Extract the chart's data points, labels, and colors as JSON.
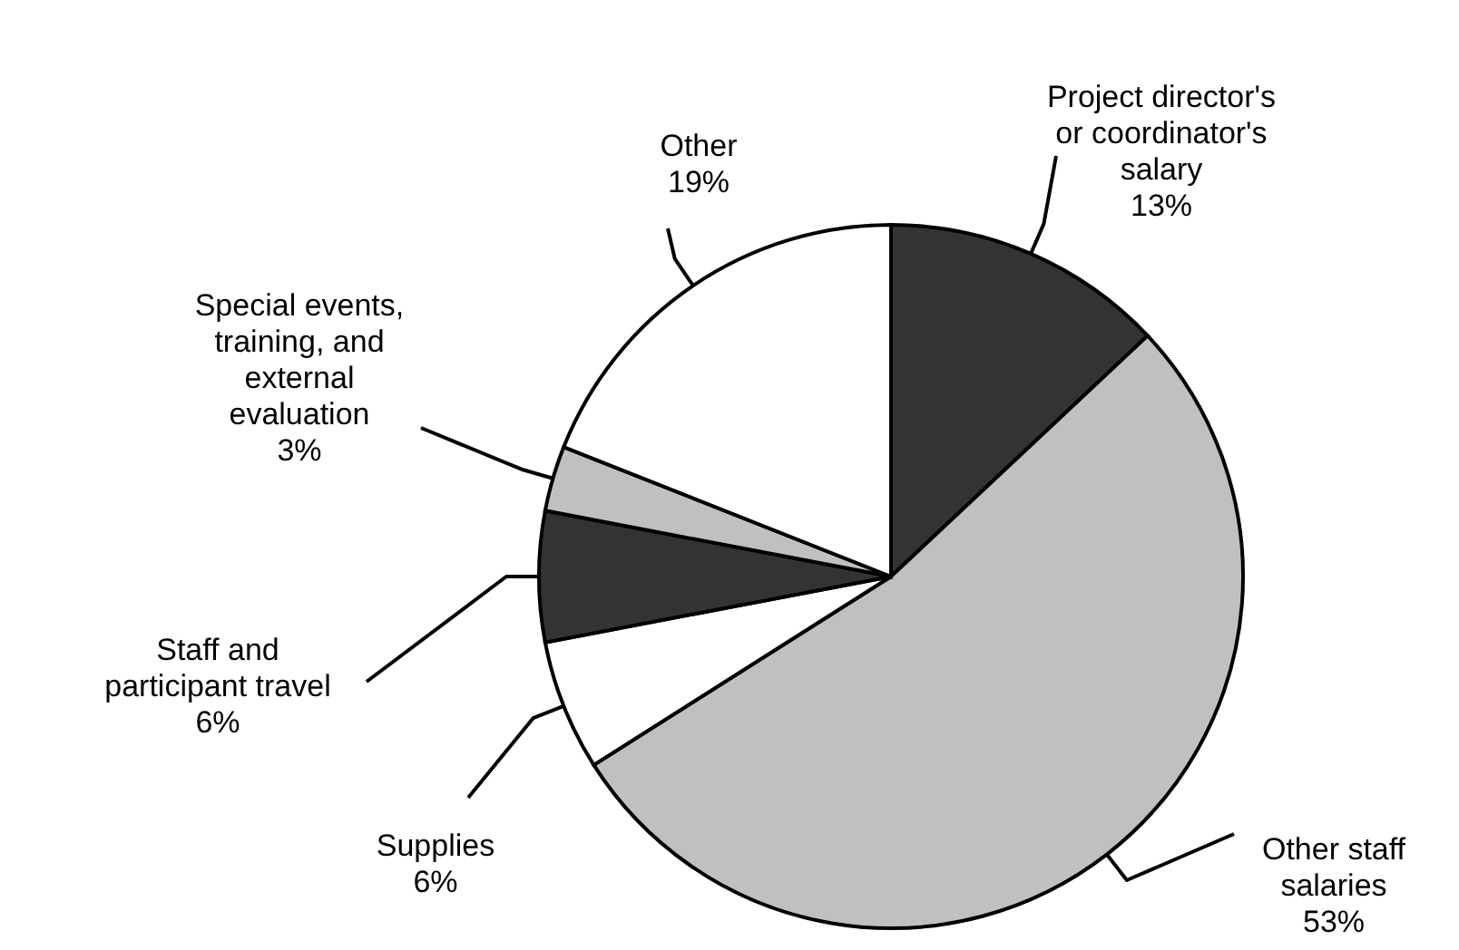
{
  "chart_data": {
    "type": "pie",
    "categories": [
      "Project director's\nor coordinator's\nsalary",
      "Other staff\nsalaries",
      "Supplies",
      "Staff and\nparticipant travel",
      "Special events,\ntraining, and\nexternal\nevaluation",
      "Other"
    ],
    "values": [
      13,
      53,
      6,
      6,
      3,
      19
    ],
    "value_labels": [
      "13%",
      "53%",
      "6%",
      "6%",
      "3%",
      "19%"
    ],
    "colors": [
      "#333333",
      "#c0c0c0",
      "#ffffff",
      "#333333",
      "#c0c0c0",
      "#ffffff"
    ]
  }
}
